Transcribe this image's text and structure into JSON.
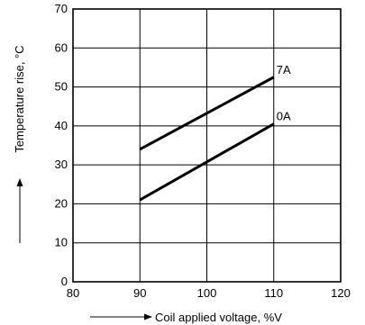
{
  "chart_data": {
    "type": "line",
    "title": "",
    "xlabel": "Coil applied voltage, %V",
    "ylabel": "Temperature rise, °C",
    "xlim": [
      80,
      120
    ],
    "ylim": [
      0,
      70
    ],
    "x_ticks": [
      "80",
      "90",
      "100",
      "110",
      "120"
    ],
    "y_ticks": [
      "0",
      "10",
      "20",
      "30",
      "40",
      "50",
      "60",
      "70"
    ],
    "grid": true,
    "legend": "none",
    "series": [
      {
        "name": "7A",
        "x": [
          90,
          110
        ],
        "y": [
          34,
          52.5
        ]
      },
      {
        "name": "0A",
        "x": [
          90,
          110
        ],
        "y": [
          21,
          40.5
        ]
      }
    ]
  }
}
